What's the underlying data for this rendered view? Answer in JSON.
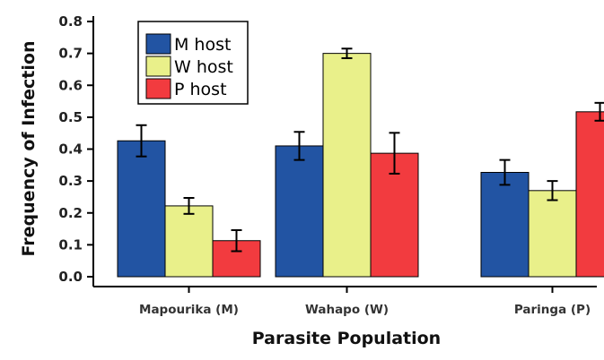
{
  "chart_data": {
    "type": "bar",
    "title": "",
    "xlabel": "Parasite Population",
    "ylabel": "Frequency of Infection",
    "categories": [
      "Mapourika (M)",
      "Wahapo (W)",
      "Paringa (P)"
    ],
    "ylim": [
      0,
      0.8
    ],
    "yticks": [
      "0.0",
      "0.1",
      "0.2",
      "0.3",
      "0.4",
      "0.5",
      "0.6",
      "0.7",
      "0.8"
    ],
    "grid": false,
    "legend_position": "top-left",
    "series": [
      {
        "name": "M host",
        "color": "#2254a3",
        "values": [
          0.426,
          0.41,
          0.327
        ],
        "errors": [
          0.049,
          0.044,
          0.039
        ]
      },
      {
        "name": "W host",
        "color": "#e9f08a",
        "values": [
          0.222,
          0.7,
          0.27
        ],
        "errors": [
          0.025,
          0.015,
          0.03
        ]
      },
      {
        "name": "P host",
        "color": "#f23b3f",
        "values": [
          0.113,
          0.387,
          0.517
        ],
        "errors": [
          0.033,
          0.064,
          0.028
        ]
      }
    ]
  }
}
